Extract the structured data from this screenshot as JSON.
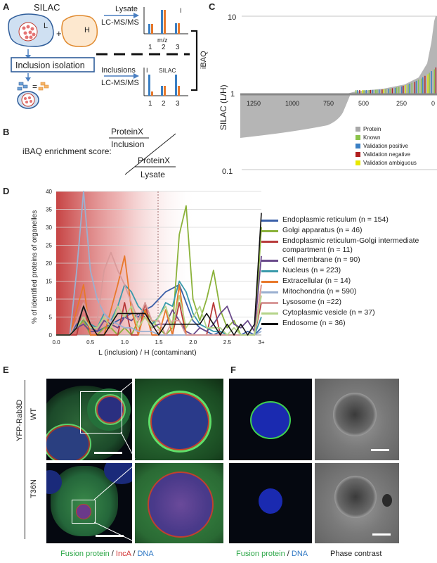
{
  "panel_labels": {
    "a": "A",
    "b": "B",
    "c": "C",
    "d": "D",
    "e": "E",
    "f": "F"
  },
  "panel_a": {
    "silac": "SILAC",
    "light": "L",
    "heavy": "H",
    "plus": "+",
    "lysate": "Lysate",
    "lcms1": "LC-MS/MS",
    "inclusion_isolation": "Inclusion isolation",
    "inclusions": "Inclusions",
    "lcms2": "LC-MS/MS",
    "equals": "=",
    "ibaq": "iBAQ",
    "mini_top": {
      "ylabel": "I",
      "xlabel": "m/z",
      "ticks": [
        "1",
        "2",
        "3"
      ]
    },
    "mini_bottom": {
      "ylabel": "I",
      "title": "SILAC",
      "ticks": [
        "1",
        "2",
        "3"
      ]
    }
  },
  "panel_b": {
    "label": "iBAQ enrichment score:",
    "num_top": "ProteinX",
    "num_bottom": "Inclusion",
    "den_top": "ProteinX",
    "den_bottom": "Lysate"
  },
  "panel_c": {
    "ylabel": "SILAC (L/H)",
    "yticks": [
      "10",
      "1",
      "0.1"
    ],
    "xticks": [
      "1250",
      "1000",
      "750",
      "500",
      "250",
      "0"
    ],
    "legend": [
      {
        "label": "Protein",
        "color": "#a8a8a8"
      },
      {
        "label": "Known",
        "color": "#8bc34a"
      },
      {
        "label": "Validation positive",
        "color": "#3a7fc4"
      },
      {
        "label": "Validation negative",
        "color": "#b01e1e"
      },
      {
        "label": "Validation ambiguous",
        "color": "#e8e800"
      }
    ]
  },
  "chart_data": {
    "type": "line",
    "xlabel": "L (inclusion) / H (contaminant)",
    "ylabel": "% of identified proteins of organelles",
    "x_ticks": [
      "0.0",
      "0.5",
      "1.0",
      "1.5",
      "2.0",
      "2.5",
      "3+"
    ],
    "y_ticks": [
      "0",
      "5",
      "10",
      "15",
      "20",
      "25",
      "30",
      "35",
      "40"
    ],
    "ylim": [
      0,
      40
    ],
    "x": [
      0.1,
      0.2,
      0.3,
      0.4,
      0.5,
      0.6,
      0.7,
      0.8,
      0.9,
      1.0,
      1.1,
      1.2,
      1.3,
      1.4,
      1.5,
      1.6,
      1.7,
      1.8,
      1.9,
      2.0,
      2.1,
      2.2,
      2.3,
      2.4,
      2.5,
      2.6,
      2.7,
      2.8,
      2.9,
      3.0
    ],
    "series": [
      {
        "name": "Endoplasmic reticulum (n = 154)",
        "color": "#3a5fa8",
        "values": [
          0,
          0,
          3,
          4,
          2,
          1,
          2,
          3,
          4,
          5,
          6,
          5,
          7,
          8,
          10,
          12,
          13,
          14,
          9,
          4,
          2,
          1,
          0,
          1,
          0,
          0,
          0,
          1,
          0,
          2
        ]
      },
      {
        "name": "Golgi apparatus (n = 46)",
        "color": "#8bb23a",
        "values": [
          0,
          0,
          2,
          4,
          0,
          0,
          2,
          2,
          0,
          2,
          0,
          4,
          7,
          4,
          2,
          0,
          2,
          28,
          36,
          10,
          4,
          10,
          18,
          7,
          2,
          4,
          0,
          0,
          0,
          30
        ]
      },
      {
        "name": "Endoplasmic reticulum-Golgi intermediate compartment (n = 11)",
        "color": "#b83a3a",
        "values": [
          0,
          0,
          0,
          9,
          0,
          0,
          0,
          0,
          0,
          9,
          0,
          0,
          9,
          0,
          0,
          0,
          0,
          9,
          0,
          0,
          0,
          0,
          9,
          0,
          0,
          0,
          0,
          0,
          0,
          9
        ]
      },
      {
        "name": "Cell membrane (n = 90)",
        "color": "#6a4a8a",
        "values": [
          0,
          0,
          2,
          3,
          1,
          1,
          4,
          3,
          2,
          5,
          4,
          6,
          5,
          2,
          3,
          3,
          7,
          4,
          1,
          0,
          2,
          1,
          3,
          6,
          8,
          3,
          2,
          4,
          1,
          22
        ]
      },
      {
        "name": "Nucleus (n = 223)",
        "color": "#3a9aab",
        "values": [
          0,
          0,
          2,
          8,
          3,
          2,
          6,
          4,
          8,
          14,
          12,
          8,
          6,
          3,
          5,
          9,
          8,
          15,
          12,
          6,
          3,
          2,
          1,
          1,
          0,
          0,
          0,
          0,
          0,
          5
        ]
      },
      {
        "name": "Extracellular (n = 14)",
        "color": "#e8782a",
        "values": [
          0,
          0,
          7,
          14,
          0,
          0,
          0,
          7,
          14,
          22,
          7,
          0,
          7,
          0,
          0,
          7,
          0,
          14,
          0,
          0,
          0,
          0,
          0,
          0,
          0,
          0,
          0,
          0,
          0,
          14
        ]
      },
      {
        "name": "Mitochondria (n = 590)",
        "color": "#9bb0d0",
        "values": [
          0,
          0,
          18,
          40,
          18,
          10,
          6,
          4,
          3,
          2,
          2,
          1,
          1,
          1,
          0,
          0,
          0,
          0,
          0,
          0,
          0,
          0,
          0,
          0,
          0,
          0,
          0,
          0,
          0,
          1
        ]
      },
      {
        "name": "Lysosome (n =22)",
        "color": "#d99a9a",
        "values": [
          0,
          0,
          4,
          9,
          4,
          4,
          18,
          23,
          18,
          14,
          9,
          4,
          9,
          4,
          4,
          0,
          4,
          4,
          0,
          0,
          0,
          0,
          0,
          0,
          0,
          0,
          0,
          0,
          0,
          14
        ]
      },
      {
        "name": "Cytoplasmic  vesicle (n = 37)",
        "color": "#b5d48a",
        "values": [
          0,
          0,
          2,
          5,
          2,
          2,
          5,
          2,
          8,
          5,
          8,
          2,
          5,
          2,
          5,
          8,
          2,
          11,
          2,
          5,
          8,
          2,
          2,
          2,
          0,
          2,
          0,
          0,
          0,
          11
        ]
      },
      {
        "name": "Endosome (n = 36)",
        "color": "#111111",
        "values": [
          0,
          0,
          2,
          8,
          3,
          0,
          0,
          3,
          6,
          6,
          6,
          6,
          6,
          3,
          0,
          3,
          3,
          3,
          3,
          3,
          3,
          6,
          3,
          0,
          3,
          0,
          3,
          0,
          3,
          34
        ]
      }
    ]
  },
  "panel_e": {
    "protein": "YFP-Rab3D",
    "wt": "WT",
    "t36n": "T36N",
    "caption": {
      "a": "Fusion protein",
      "sep1": " / ",
      "b": "IncA",
      "sep2": " / ",
      "c": "DNA"
    }
  },
  "panel_f": {
    "caption_left": {
      "a": "Fusion protein",
      "sep": " / ",
      "b": "DNA"
    },
    "caption_right": "Phase contrast"
  }
}
